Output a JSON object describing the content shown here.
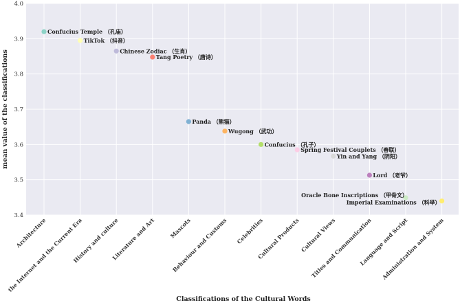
{
  "chart_data": {
    "type": "scatter",
    "xlabel": "Classifications of the Cultural Words",
    "ylabel": "mean value of the classifications",
    "ylim": [
      3.4,
      4.0
    ],
    "yticks": [
      "3.4",
      "3.5",
      "3.6",
      "3.7",
      "3.8",
      "3.9",
      "4.0"
    ],
    "grid": true,
    "categories": [
      "Architecture",
      "the Internet and the Current Era",
      "History and culture",
      "Literature and Art",
      "Mascots",
      "Behaviour and Customs",
      "Celebrities",
      "Cultural Products",
      "Cultural Views",
      "Titles and Communication",
      "Language and Script",
      "Administration and System"
    ],
    "points": [
      {
        "x": "Architecture",
        "y": 3.92,
        "label": "Confucius Temple （孔庙）",
        "color": "#8dd3c7"
      },
      {
        "x": "the Internet and the Current Era",
        "y": 3.895,
        "label": "TikTok （抖音）",
        "color": "#ffffb3"
      },
      {
        "x": "History and culture",
        "y": 3.865,
        "label": "Chinese Zodiac （生肖）",
        "color": "#bebada"
      },
      {
        "x": "Literature and Art",
        "y": 3.848,
        "label": "Tang Poetry （唐诗）",
        "color": "#fb8072"
      },
      {
        "x": "Mascots",
        "y": 3.665,
        "label": "Panda （熊猫）",
        "color": "#80b1d3"
      },
      {
        "x": "Behaviour and Customs",
        "y": 3.638,
        "label": "Wugong （武功）",
        "color": "#fdb462"
      },
      {
        "x": "Celebrities",
        "y": 3.6,
        "label": "Confucius （孔子）",
        "color": "#b3de69"
      },
      {
        "x": "Cultural Products",
        "y": 3.585,
        "label": "Spring Festival Couplets （春联）",
        "color": "#fccde5"
      },
      {
        "x": "Cultural Views",
        "y": 3.567,
        "label": "Yin and Yang （阴阳）",
        "color": "#d9d9d9"
      },
      {
        "x": "Titles and Communication",
        "y": 3.513,
        "label": "Lord （老爷）",
        "color": "#bc80bd"
      },
      {
        "x": "Language and Script",
        "y": 3.449,
        "label": "Oracle Bone Inscriptions （甲骨文）",
        "color": "#ccebc5"
      },
      {
        "x": "Administration and System",
        "y": 3.44,
        "label": "Imperial Examinations （科举）",
        "color": "#ffed6f"
      }
    ]
  },
  "colors": {
    "plot_background": "#eaeaf2",
    "grid": "#ffffff"
  }
}
